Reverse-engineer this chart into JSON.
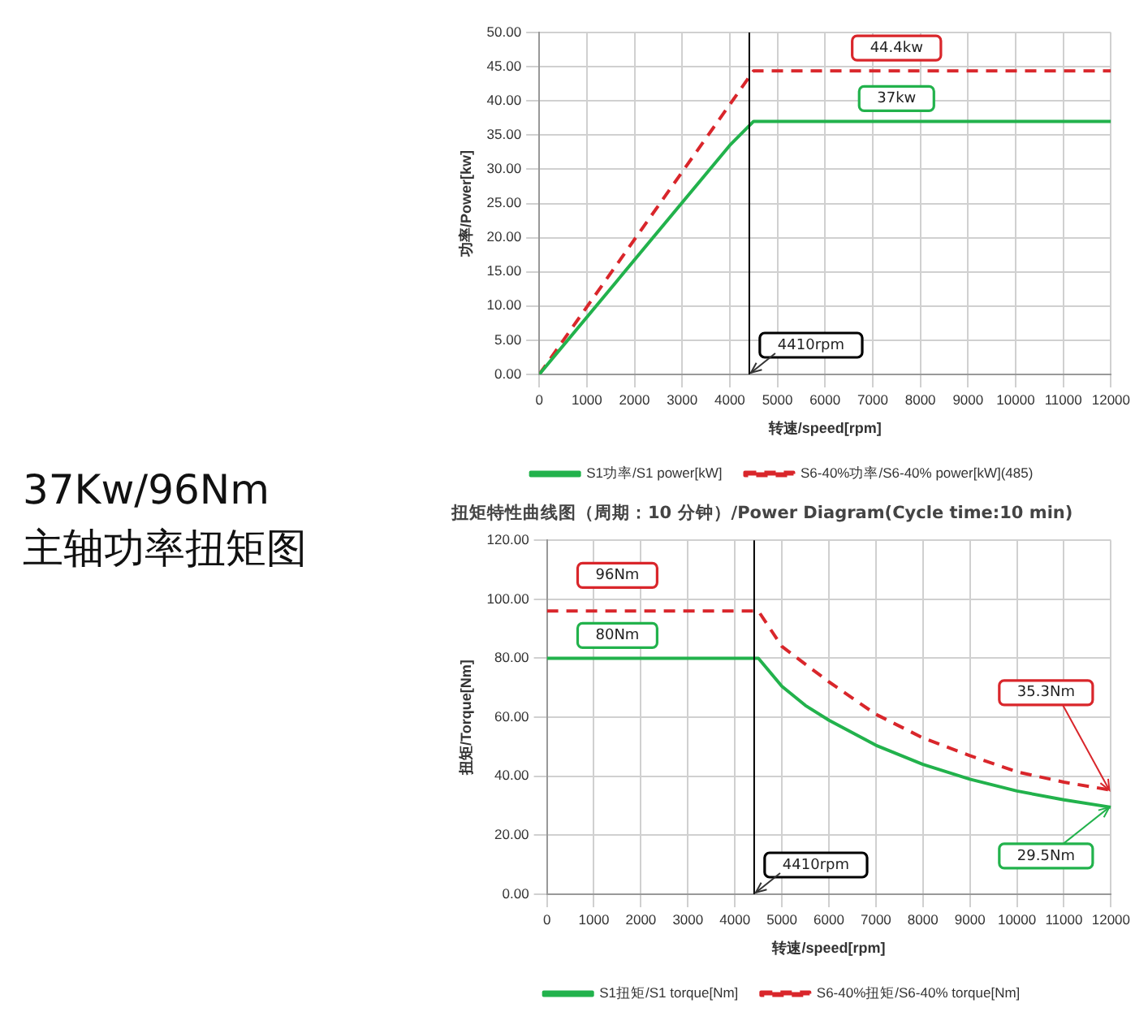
{
  "chart_data": [
    {
      "type": "line",
      "title": "37Kw/96Nm",
      "subtitle": "主轴功率扭矩图",
      "xlabel": "转速/speed[rpm]",
      "ylabel": "功率/Power[kw]",
      "xlim": [
        0,
        12000
      ],
      "xticks": [
        0,
        1000,
        2000,
        3000,
        4000,
        5000,
        6000,
        7000,
        8000,
        9000,
        10000,
        11000,
        12000
      ],
      "ylim": [
        0,
        50
      ],
      "yticks": [
        {
          "value": 0,
          "label": "0.00"
        },
        {
          "value": 5,
          "label": "5.00"
        },
        {
          "value": 10,
          "label": "10.00"
        },
        {
          "value": 15,
          "label": "15.00"
        },
        {
          "value": 20,
          "label": "20.00"
        },
        {
          "value": 25,
          "label": "25.00"
        },
        {
          "value": 30,
          "label": "30.00"
        },
        {
          "value": 35,
          "label": "35.00"
        },
        {
          "value": 40,
          "label": "40.00"
        },
        {
          "value": 45,
          "label": "45.00"
        },
        {
          "value": 50,
          "label": "50.00"
        }
      ],
      "grid": true,
      "legend": "bottom",
      "marker": "none",
      "series": [
        {
          "name": "S1功率/S1 power[kW]",
          "color": "#22b24c",
          "line_style": "solid",
          "x": [
            0,
            4000,
            4500,
            12000
          ],
          "values": [
            0,
            33.5,
            37,
            37
          ]
        },
        {
          "name": "S6-40%功率/S6-40% power[kW](485)",
          "color": "#d9262b",
          "line_style": "dashed",
          "x": [
            0,
            4500,
            12000
          ],
          "values": [
            0,
            44.4,
            44.4
          ]
        }
      ],
      "ref_lines": [
        {
          "axis": "x",
          "value": 4410,
          "label": "4410rpm",
          "color": "#000000"
        }
      ],
      "annotations": [
        {
          "text": "44.4kw",
          "x": 7500,
          "y": 44.4
        },
        {
          "text": "37kw",
          "x": 7500,
          "y": 37
        }
      ]
    },
    {
      "type": "line",
      "title": "扭矩特性曲线图（周期：10 分钟）/Power Diagram(Cycle time:10 min)",
      "xlabel": "转速/speed[rpm]",
      "ylabel": "扭矩/Torque[Nm]",
      "xlim": [
        0,
        12000
      ],
      "xticks": [
        0,
        1000,
        2000,
        3000,
        4000,
        5000,
        6000,
        7000,
        8000,
        9000,
        10000,
        11000,
        12000
      ],
      "ylim": [
        0,
        120
      ],
      "yticks": [
        {
          "value": 0,
          "label": "0.00"
        },
        {
          "value": 20,
          "label": "20.00"
        },
        {
          "value": 40,
          "label": "40.00"
        },
        {
          "value": 60,
          "label": "60.00"
        },
        {
          "value": 80,
          "label": "80.00"
        },
        {
          "value": 100,
          "label": "100.00"
        },
        {
          "value": 120,
          "label": "120.00"
        }
      ],
      "grid": true,
      "legend": "bottom",
      "marker": "none",
      "series": [
        {
          "name": "S1扭矩/S1 torque[Nm]",
          "color": "#22b24c",
          "line_style": "solid",
          "x": [
            0,
            4500,
            5000,
            5500,
            6000,
            7000,
            8000,
            9000,
            10000,
            11000,
            12000
          ],
          "values": [
            80,
            80,
            70.5,
            64,
            59,
            50.5,
            44,
            39,
            35,
            32,
            29.5
          ]
        },
        {
          "name": "S6-40%扭矩/S6-40% torque[Nm]",
          "color": "#d9262b",
          "line_style": "dashed",
          "x": [
            0,
            4500,
            5000,
            6000,
            7000,
            8000,
            9000,
            10000,
            11000,
            12000
          ],
          "values": [
            96,
            96,
            84,
            72,
            61,
            53,
            47,
            41.5,
            38,
            35.3
          ]
        }
      ],
      "ref_lines": [
        {
          "axis": "x",
          "value": 4410,
          "label": "4410rpm",
          "color": "#000000"
        }
      ],
      "annotations": [
        {
          "text": "96Nm",
          "x": 1500,
          "y": 96
        },
        {
          "text": "80Nm",
          "x": 1500,
          "y": 80
        },
        {
          "text": "35.3Nm",
          "x": 12000,
          "y": 35.3
        },
        {
          "text": "29.5Nm",
          "x": 12000,
          "y": 29.5
        }
      ]
    }
  ]
}
